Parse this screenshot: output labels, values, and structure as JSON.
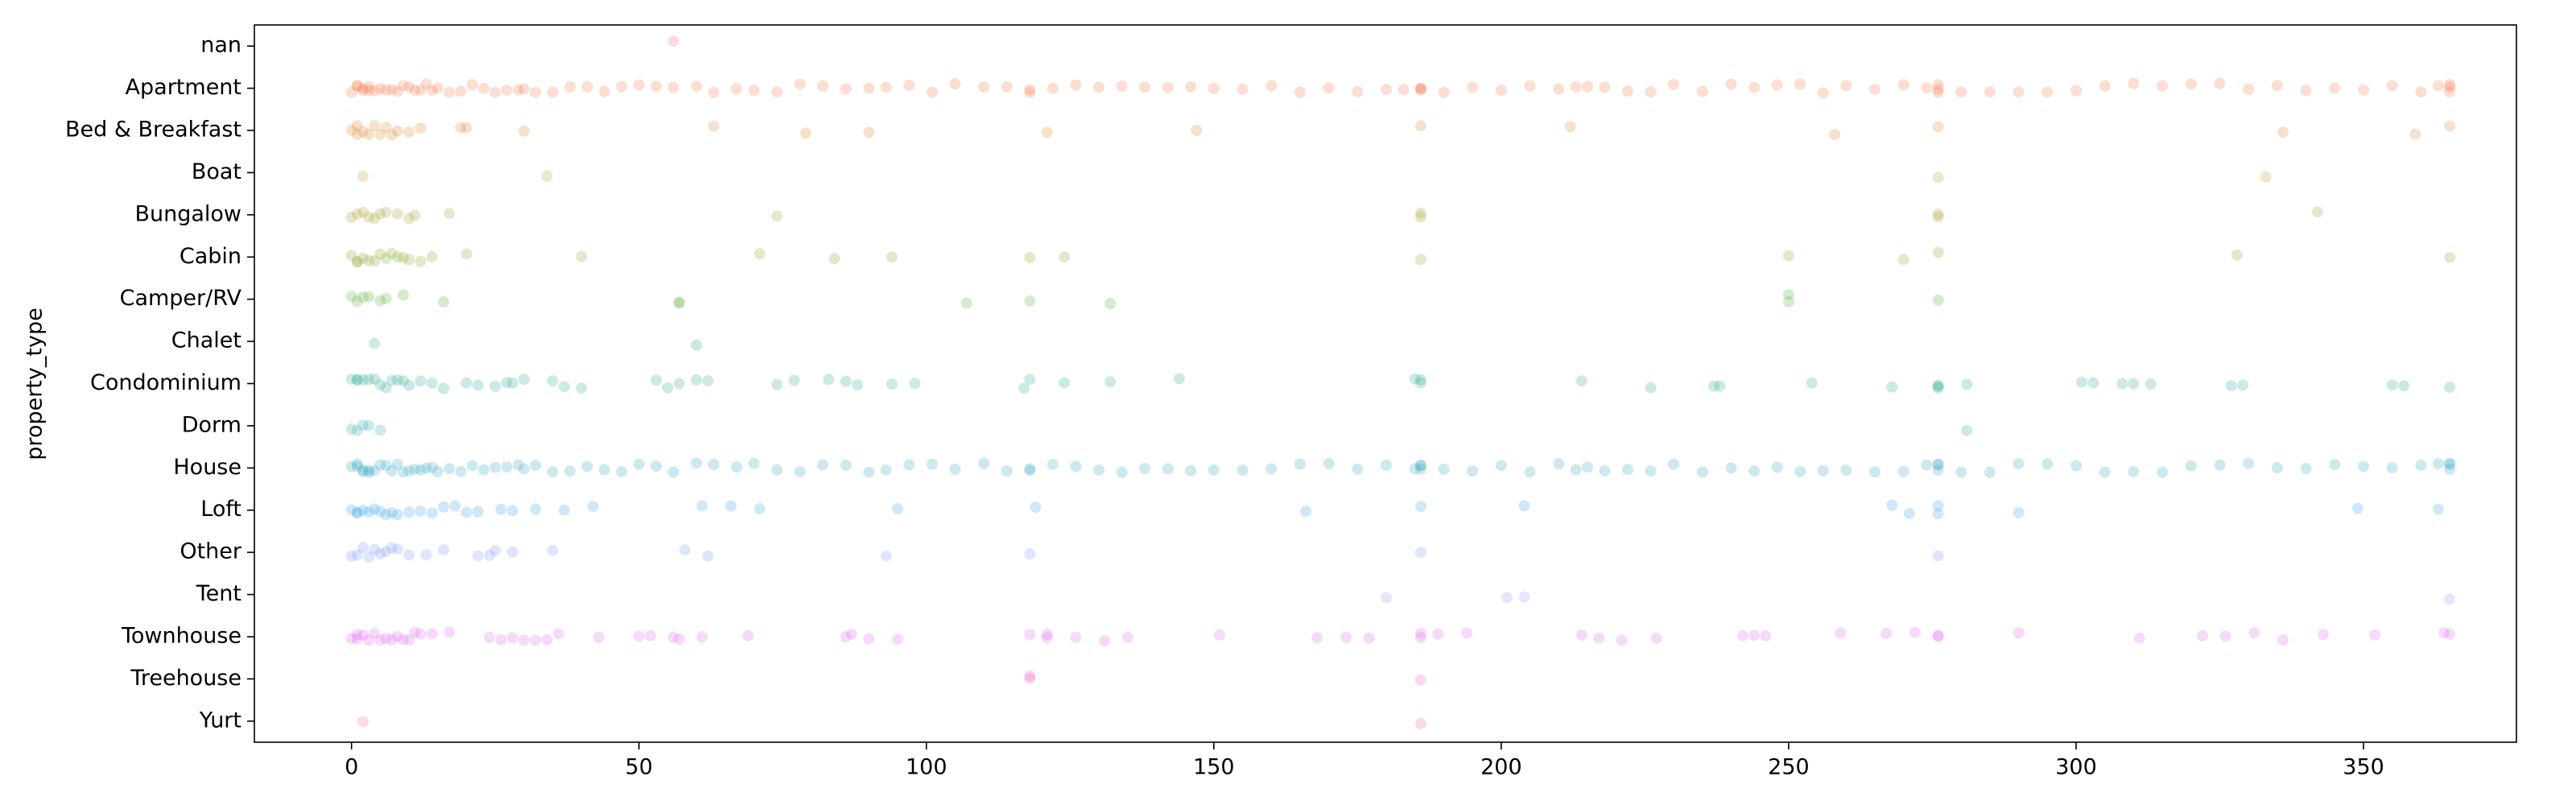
{
  "chart_data": {
    "type": "strip",
    "ylabel": "property_type",
    "xlim": [
      -16.9,
      376.6
    ],
    "xticks": [
      0,
      50,
      100,
      150,
      200,
      250,
      300,
      350
    ],
    "alpha": 0.25,
    "series": [
      {
        "name": "nan",
        "color": "#f77189",
        "values": [
          56
        ]
      },
      {
        "name": "Apartment",
        "color": "#f37b4b",
        "values": [
          0,
          1,
          1,
          2,
          2,
          3,
          3,
          4,
          5,
          6,
          7,
          8,
          9,
          10,
          11,
          12,
          13,
          14,
          15,
          17,
          19,
          21,
          23,
          25,
          27,
          29,
          30,
          32,
          35,
          38,
          41,
          44,
          47,
          50,
          53,
          56,
          60,
          63,
          67,
          70,
          74,
          78,
          82,
          86,
          90,
          93,
          97,
          101,
          105,
          110,
          114,
          118,
          118,
          122,
          126,
          130,
          134,
          138,
          142,
          146,
          150,
          155,
          160,
          165,
          170,
          175,
          180,
          183,
          186,
          186,
          186,
          190,
          195,
          200,
          205,
          210,
          213,
          215,
          218,
          222,
          226,
          230,
          235,
          240,
          244,
          248,
          252,
          256,
          260,
          265,
          270,
          274,
          276,
          276,
          276,
          280,
          285,
          290,
          295,
          300,
          305,
          310,
          315,
          320,
          325,
          330,
          335,
          340,
          345,
          350,
          355,
          360,
          363,
          365,
          365,
          365
        ]
      },
      {
        "name": "Bed & Breakfast",
        "color": "#d88c31",
        "values": [
          0,
          1,
          1,
          2,
          3,
          4,
          5,
          6,
          7,
          8,
          10,
          12,
          19,
          20,
          30,
          63,
          79,
          90,
          121,
          147,
          186,
          212,
          258,
          276,
          336,
          359,
          365
        ]
      },
      {
        "name": "Boat",
        "color": "#c19a31",
        "values": [
          2,
          34,
          276,
          333
        ]
      },
      {
        "name": "Bungalow",
        "color": "#a7a131",
        "values": [
          0,
          1,
          2,
          3,
          4,
          5,
          6,
          8,
          10,
          11,
          17,
          74,
          186,
          186,
          276,
          276,
          342
        ]
      },
      {
        "name": "Cabin",
        "color": "#8ba731",
        "values": [
          0,
          1,
          1,
          2,
          3,
          4,
          5,
          6,
          7,
          8,
          9,
          10,
          12,
          14,
          20,
          40,
          71,
          84,
          94,
          118,
          124,
          186,
          250,
          270,
          276,
          328,
          365
        ]
      },
      {
        "name": "Camper/RV",
        "color": "#56ae32",
        "values": [
          0,
          1,
          2,
          3,
          5,
          6,
          9,
          16,
          57,
          57,
          107,
          118,
          132,
          250,
          250,
          276
        ]
      },
      {
        "name": "Chalet",
        "color": "#34ae7c",
        "values": [
          4,
          60
        ]
      },
      {
        "name": "Condominium",
        "color": "#35ac97",
        "values": [
          0,
          1,
          1,
          2,
          3,
          4,
          5,
          6,
          7,
          8,
          9,
          10,
          12,
          14,
          16,
          20,
          22,
          25,
          27,
          28,
          30,
          35,
          37,
          40,
          53,
          55,
          57,
          60,
          62,
          74,
          77,
          83,
          86,
          88,
          94,
          98,
          117,
          118,
          124,
          132,
          144,
          185,
          186,
          186,
          214,
          226,
          237,
          238,
          254,
          268,
          276,
          276,
          276,
          281,
          301,
          303,
          308,
          310,
          313,
          327,
          329,
          355,
          357,
          365
        ]
      },
      {
        "name": "Dorm",
        "color": "#37abab",
        "values": [
          0,
          1,
          2,
          3,
          5,
          281
        ]
      },
      {
        "name": "House",
        "color": "#39a9c3",
        "values": [
          0,
          1,
          1,
          2,
          2,
          3,
          3,
          4,
          5,
          6,
          7,
          8,
          9,
          10,
          11,
          12,
          13,
          14,
          15,
          17,
          19,
          21,
          23,
          25,
          27,
          29,
          30,
          32,
          35,
          38,
          41,
          44,
          47,
          50,
          53,
          56,
          60,
          63,
          67,
          70,
          74,
          78,
          82,
          86,
          90,
          93,
          97,
          101,
          105,
          110,
          114,
          118,
          118,
          122,
          126,
          130,
          134,
          138,
          142,
          146,
          150,
          155,
          160,
          165,
          170,
          175,
          180,
          185,
          186,
          186,
          186,
          190,
          195,
          200,
          205,
          210,
          213,
          215,
          218,
          222,
          226,
          230,
          235,
          240,
          244,
          248,
          252,
          256,
          260,
          265,
          270,
          274,
          276,
          276,
          276,
          280,
          285,
          290,
          295,
          300,
          305,
          310,
          315,
          320,
          325,
          330,
          335,
          340,
          345,
          350,
          355,
          360,
          363,
          365,
          365,
          365
        ]
      },
      {
        "name": "Loft",
        "color": "#3ba3ec",
        "values": [
          0,
          1,
          1,
          2,
          3,
          4,
          5,
          6,
          7,
          8,
          10,
          12,
          14,
          16,
          18,
          20,
          22,
          26,
          28,
          32,
          37,
          42,
          61,
          66,
          71,
          95,
          119,
          166,
          186,
          204,
          268,
          271,
          276,
          276,
          290,
          349,
          363
        ]
      },
      {
        "name": "Other",
        "color": "#8197f4",
        "values": [
          0,
          1,
          2,
          3,
          4,
          5,
          6,
          7,
          8,
          10,
          13,
          16,
          22,
          24,
          25,
          28,
          35,
          58,
          62,
          93,
          118,
          186,
          276
        ]
      },
      {
        "name": "Tent",
        "color": "#b98af4",
        "values": [
          180,
          201,
          204,
          365
        ]
      },
      {
        "name": "Townhouse",
        "color": "#e169f1",
        "values": [
          0,
          1,
          1,
          2,
          3,
          4,
          5,
          6,
          7,
          8,
          9,
          10,
          11,
          12,
          14,
          17,
          24,
          26,
          28,
          30,
          32,
          34,
          36,
          43,
          50,
          52,
          56,
          57,
          61,
          69,
          86,
          87,
          90,
          95,
          118,
          121,
          121,
          126,
          131,
          135,
          151,
          168,
          173,
          177,
          186,
          186,
          189,
          194,
          214,
          217,
          221,
          227,
          242,
          244,
          246,
          259,
          267,
          272,
          276,
          276,
          290,
          311,
          322,
          326,
          331,
          336,
          343,
          352,
          364,
          365
        ]
      },
      {
        "name": "Treehouse",
        "color": "#f461c4",
        "values": [
          118,
          118,
          186
        ]
      },
      {
        "name": "Yurt",
        "color": "#f56aa3",
        "values": [
          2,
          186
        ]
      }
    ]
  }
}
